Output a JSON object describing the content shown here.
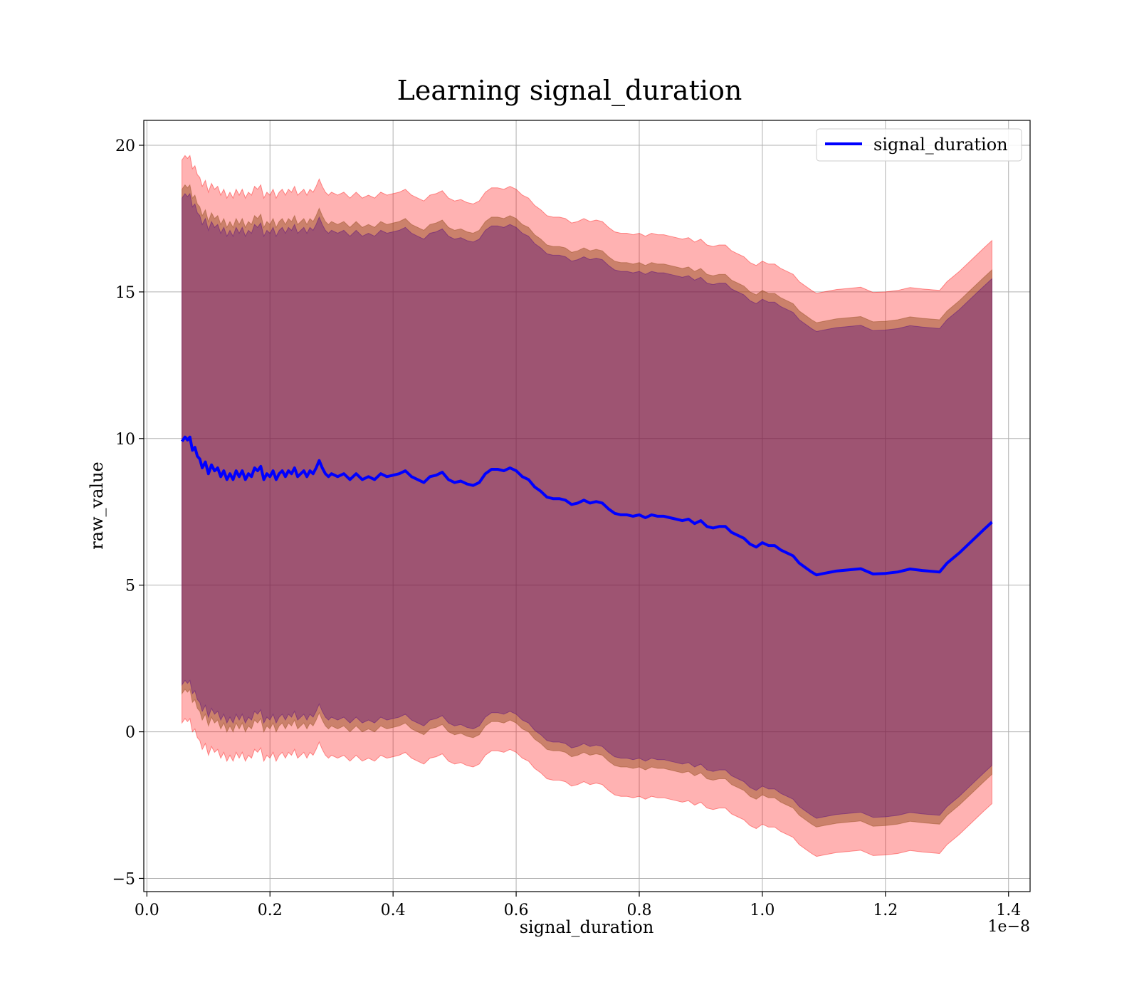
{
  "chart_data": {
    "type": "line",
    "title": "Learning signal_duration",
    "xlabel": "signal_duration",
    "ylabel": "raw_value",
    "x_offset_label": "1e−8",
    "xlim": [
      -0.005,
      1.435
    ],
    "ylim": [
      -5.45,
      20.85
    ],
    "xticks": [
      0.0,
      0.2,
      0.4,
      0.6,
      0.8,
      1.0,
      1.2,
      1.4
    ],
    "xtick_labels": [
      "0.0",
      "0.2",
      "0.4",
      "0.6",
      "0.8",
      "1.0",
      "1.2",
      "1.4"
    ],
    "yticks": [
      -5,
      0,
      5,
      10,
      15,
      20
    ],
    "ytick_labels": [
      "−5",
      "0",
      "5",
      "10",
      "15",
      "20"
    ],
    "grid": true,
    "legend": {
      "placement": "top-right",
      "entries": [
        "signal_duration"
      ]
    },
    "colors": {
      "line": "#0000ff",
      "band_outer": "#ff0000",
      "band_middle": "#8b4513",
      "band_inner": "#4b0082",
      "grid": "#b0b0b0",
      "axes": "#000000"
    },
    "series": [
      {
        "name": "signal_duration",
        "x": [
          0.057,
          0.062,
          0.066,
          0.07,
          0.074,
          0.078,
          0.082,
          0.086,
          0.09,
          0.095,
          0.1,
          0.105,
          0.11,
          0.115,
          0.12,
          0.125,
          0.13,
          0.135,
          0.14,
          0.145,
          0.15,
          0.155,
          0.16,
          0.165,
          0.17,
          0.175,
          0.18,
          0.185,
          0.19,
          0.195,
          0.2,
          0.205,
          0.21,
          0.215,
          0.22,
          0.225,
          0.23,
          0.235,
          0.24,
          0.245,
          0.25,
          0.255,
          0.26,
          0.265,
          0.27,
          0.275,
          0.28,
          0.285,
          0.29,
          0.295,
          0.3,
          0.31,
          0.32,
          0.33,
          0.34,
          0.35,
          0.36,
          0.37,
          0.38,
          0.39,
          0.4,
          0.41,
          0.42,
          0.43,
          0.44,
          0.45,
          0.46,
          0.47,
          0.48,
          0.49,
          0.5,
          0.51,
          0.52,
          0.53,
          0.54,
          0.55,
          0.56,
          0.57,
          0.58,
          0.59,
          0.6,
          0.61,
          0.62,
          0.63,
          0.64,
          0.65,
          0.66,
          0.67,
          0.68,
          0.69,
          0.7,
          0.71,
          0.72,
          0.73,
          0.74,
          0.75,
          0.76,
          0.77,
          0.78,
          0.79,
          0.8,
          0.81,
          0.82,
          0.83,
          0.84,
          0.85,
          0.86,
          0.87,
          0.88,
          0.89,
          0.9,
          0.91,
          0.92,
          0.93,
          0.94,
          0.95,
          0.96,
          0.97,
          0.98,
          0.99,
          1.0,
          1.01,
          1.02,
          1.03,
          1.04,
          1.05,
          1.06,
          1.07,
          1.08,
          1.088,
          1.1,
          1.12,
          1.14,
          1.16,
          1.18,
          1.2,
          1.22,
          1.24,
          1.26,
          1.288,
          1.3,
          1.32,
          1.34,
          1.36,
          1.373
        ],
        "values": [
          9.9,
          10.05,
          9.95,
          10.05,
          9.6,
          9.7,
          9.4,
          9.3,
          9.0,
          9.2,
          8.8,
          9.1,
          8.9,
          9.0,
          8.7,
          8.9,
          8.6,
          8.8,
          8.6,
          8.9,
          8.7,
          8.9,
          8.6,
          8.8,
          8.7,
          9.0,
          8.9,
          9.05,
          8.6,
          8.8,
          8.7,
          8.9,
          8.6,
          8.8,
          8.9,
          8.7,
          8.9,
          8.8,
          9.0,
          8.7,
          8.8,
          8.9,
          8.7,
          8.9,
          8.8,
          9.0,
          9.25,
          9.0,
          8.8,
          8.7,
          8.8,
          8.7,
          8.8,
          8.6,
          8.8,
          8.6,
          8.7,
          8.6,
          8.8,
          8.7,
          8.75,
          8.8,
          8.9,
          8.7,
          8.6,
          8.5,
          8.7,
          8.75,
          8.85,
          8.6,
          8.5,
          8.55,
          8.45,
          8.4,
          8.5,
          8.8,
          8.95,
          8.95,
          8.9,
          9.0,
          8.9,
          8.7,
          8.6,
          8.35,
          8.2,
          8.0,
          7.95,
          7.95,
          7.9,
          7.75,
          7.8,
          7.9,
          7.8,
          7.85,
          7.8,
          7.6,
          7.45,
          7.4,
          7.4,
          7.35,
          7.4,
          7.3,
          7.4,
          7.35,
          7.35,
          7.3,
          7.25,
          7.2,
          7.25,
          7.1,
          7.2,
          7.0,
          6.95,
          7.0,
          7.0,
          6.8,
          6.7,
          6.6,
          6.4,
          6.3,
          6.45,
          6.35,
          6.35,
          6.2,
          6.1,
          6.0,
          5.75,
          5.6,
          5.45,
          5.35,
          5.4,
          5.48,
          5.52,
          5.56,
          5.38,
          5.4,
          5.45,
          5.55,
          5.5,
          5.45,
          5.75,
          6.1,
          6.5,
          6.9,
          7.15
        ]
      }
    ],
    "bands": [
      {
        "name": "outer",
        "half_width_upper": 9.6,
        "half_width_lower": 9.6
      },
      {
        "name": "middle",
        "half_width_upper": 8.6,
        "half_width_lower": 8.6
      },
      {
        "name": "inner",
        "half_width_upper": 8.3,
        "half_width_lower": 8.3
      }
    ]
  }
}
